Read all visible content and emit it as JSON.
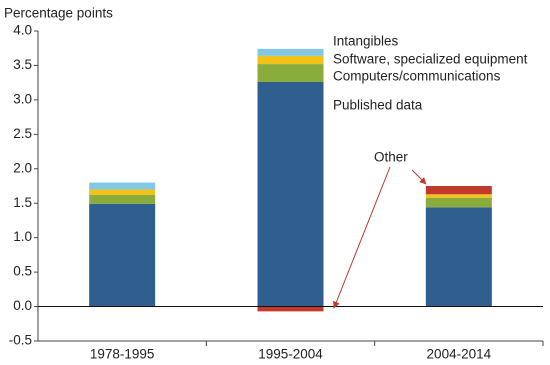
{
  "chart_data": {
    "type": "stacked-bar",
    "y_label": "Percentage points",
    "categories": [
      "1978-1995",
      "1995-2004",
      "2004-2014"
    ],
    "series": [
      {
        "name": "Published data",
        "color": "#2e5f8e",
        "values": [
          1.49,
          3.26,
          1.44
        ]
      },
      {
        "name": "Computers/communications",
        "color": "#8aac3c",
        "values": [
          0.13,
          0.26,
          0.14
        ]
      },
      {
        "name": "Software, specialized equipment",
        "color": "#f2c21b",
        "values": [
          0.08,
          0.12,
          0.05
        ]
      },
      {
        "name": "Intangibles",
        "color": "#80c8e3",
        "values": [
          0.1,
          0.1,
          0
        ]
      },
      {
        "name": "Other",
        "color": "#c0392b",
        "values": [
          0,
          -0.07,
          0.12
        ]
      }
    ],
    "ylim": [
      -0.5,
      4.0
    ],
    "yticks": [
      -0.5,
      {
        "value": 0,
        "label": "0.0"
      },
      0.5,
      {
        "value": 1,
        "label": "1.0"
      },
      1.5,
      {
        "value": 2,
        "label": "2.0"
      },
      2.5,
      {
        "value": 3,
        "label": "3.0"
      },
      3.5,
      {
        "value": 4,
        "label": "4.0"
      }
    ]
  }
}
